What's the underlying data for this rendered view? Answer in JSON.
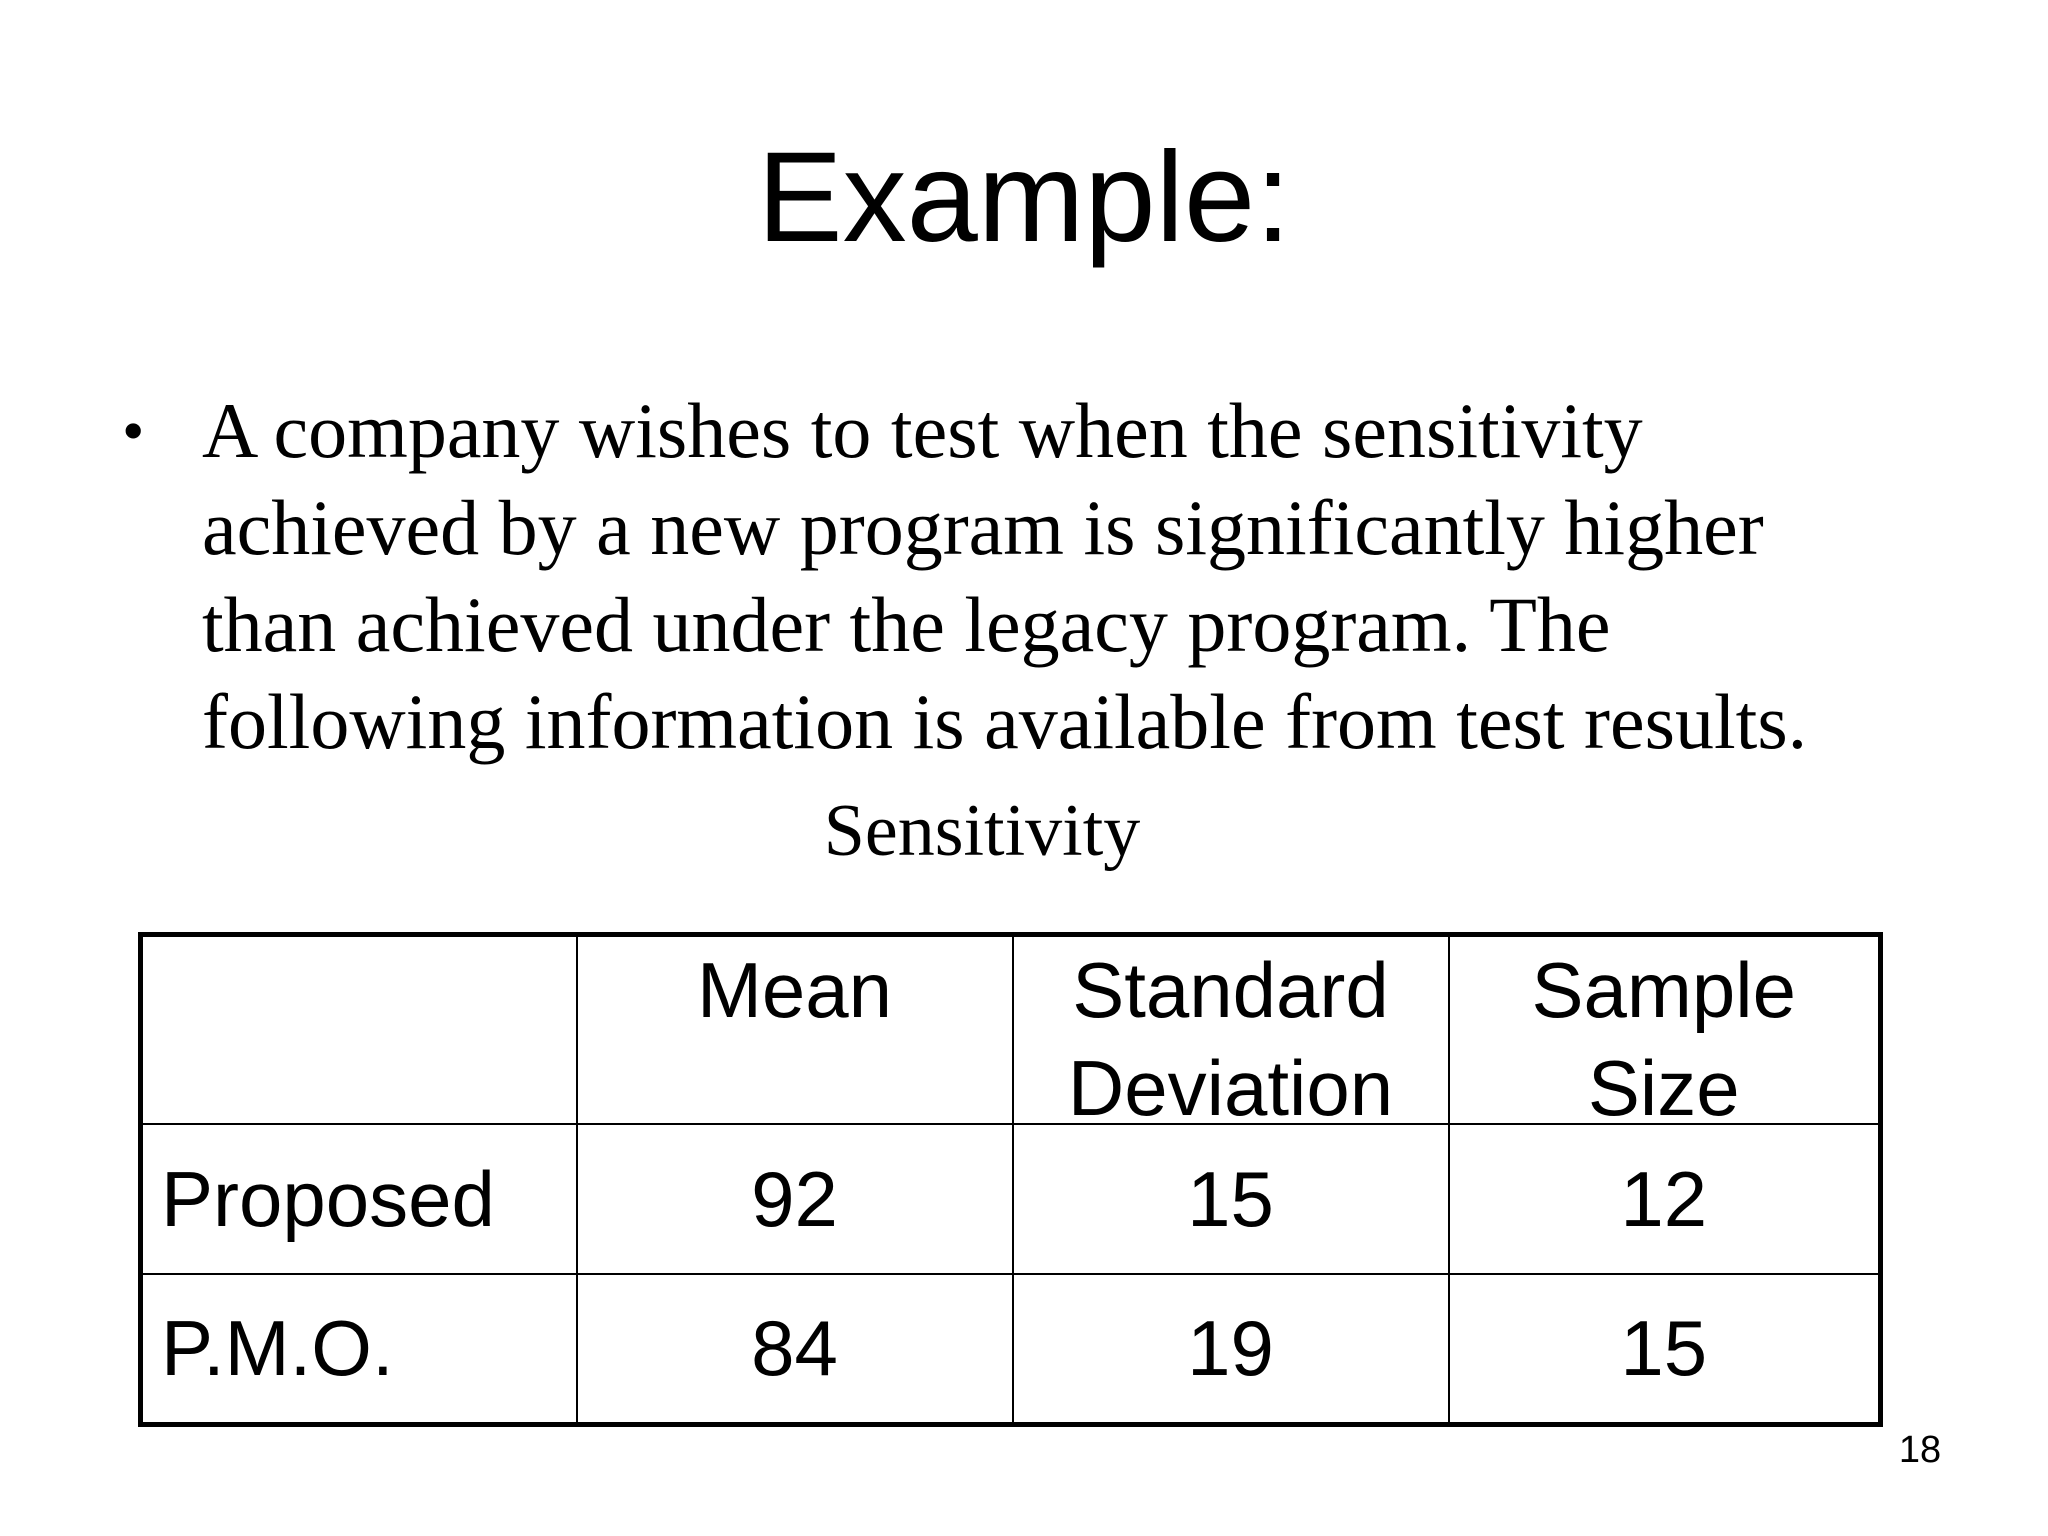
{
  "slide": {
    "title": "Example:",
    "bullet": {
      "symbol": "•",
      "lines": [
        "A company wishes to test when the sensitivity",
        "achieved by a new program is significantly higher",
        "than achieved under the legacy program.  The",
        "following information is available from test results."
      ]
    },
    "table_caption": "Sensitivity",
    "table": {
      "headers": [
        "",
        "Mean",
        "Standard\nDeviation",
        "Sample\nSize"
      ],
      "rows": [
        [
          "Proposed",
          "92",
          "15",
          "12"
        ],
        [
          "P.M.O.",
          "84",
          "19",
          "15"
        ]
      ]
    },
    "page_number": "18"
  }
}
